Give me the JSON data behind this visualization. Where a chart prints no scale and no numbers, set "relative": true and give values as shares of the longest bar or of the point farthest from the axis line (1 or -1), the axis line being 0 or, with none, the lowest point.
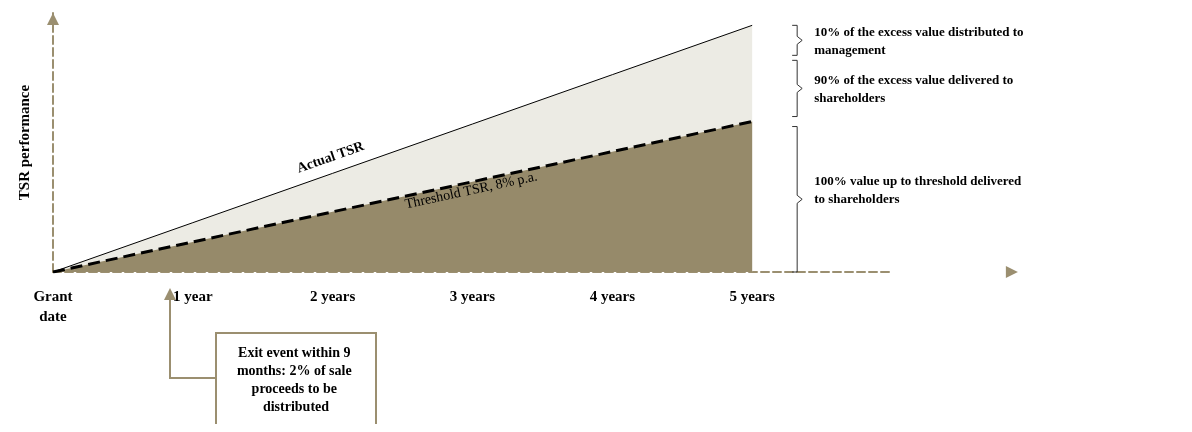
{
  "chart_data": {
    "type": "area",
    "relative": true,
    "ylabel": "TSR performance",
    "categories": [
      "Grant date",
      "1 year",
      "2 years",
      "3 years",
      "4 years",
      "5 years"
    ],
    "series": [
      {
        "name": "Actual TSR",
        "color": "#ecebe4",
        "values": [
          0,
          0.2,
          0.4,
          0.6,
          0.8,
          1
        ]
      },
      {
        "name": "Threshold TSR, 8% p.a.",
        "color": "#968a6a",
        "line_style": "dashed",
        "values": [
          0,
          0.122,
          0.244,
          0.366,
          0.488,
          0.61
        ]
      }
    ],
    "annotations": [
      "10% of the excess value distributed to management",
      "90% of the excess value delivered to shareholders",
      "100% value up to threshold delivered to shareholders",
      "Exit event within 9 months: 2% of sale proceeds to be distributed"
    ],
    "legend": false,
    "grid": false
  }
}
